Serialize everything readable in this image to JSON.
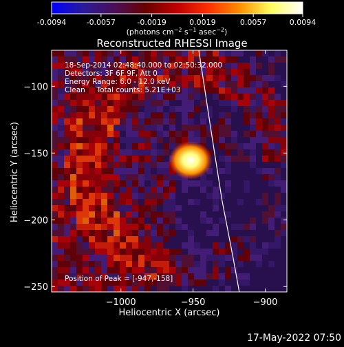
{
  "colorbar": {
    "tick_labels": [
      "-0.0094",
      "-0.0057",
      "-0.0019",
      "0.0019",
      "0.0057",
      "0.0094"
    ],
    "ticks": [
      -0.0094,
      -0.0057,
      -0.0019,
      0.0019,
      0.0057,
      0.0094
    ],
    "range": [
      -0.0094,
      0.0094
    ],
    "stops": [
      "#0000ff",
      "#2a1a9a",
      "#4a1058",
      "#6a0000",
      "#c00000",
      "#ff3000",
      "#ff9000",
      "#ffff60",
      "#ffffff"
    ]
  },
  "chart_data": {
    "type": "heatmap",
    "title": "Reconstructed RHESSI Image",
    "xlabel": "Heliocentric X (arcsec)",
    "ylabel": "Heliocentric Y (arcsec)",
    "xlim": [
      -1048,
      -885
    ],
    "ylim": [
      -254,
      -73
    ],
    "x_ticks": [
      -1000,
      -950,
      -900
    ],
    "x_tick_labels": [
      "−1000",
      "−950",
      "−900"
    ],
    "y_ticks": [
      -100,
      -150,
      -200,
      -250
    ],
    "y_tick_labels": [
      "−100",
      "−150",
      "−200",
      "−250"
    ],
    "colorbar_unit_parts": [
      "(photons cm",
      "−2",
      " s",
      "−1",
      " asec",
      "−2",
      ")"
    ],
    "peak": {
      "x": -947,
      "y": -158
    },
    "limb_curve": [
      [
        -946,
        -73
      ],
      [
        -938,
        -130
      ],
      [
        -930,
        -185
      ],
      [
        -922,
        -230
      ],
      [
        -918,
        -254
      ]
    ],
    "info_lines": [
      "18-Sep-2014 02:48:40.000 to 02:50:32.000",
      "Detectors: 3F 6F 9F, Att 0",
      "Energy Range: 6.0 - 12.0 keV",
      "Clean     Total counts: 5.21E+03"
    ],
    "peak_label": "Position of Peak = [-947,-158]"
  },
  "footer": {
    "timestamp": "17-May-2022 07:50"
  }
}
